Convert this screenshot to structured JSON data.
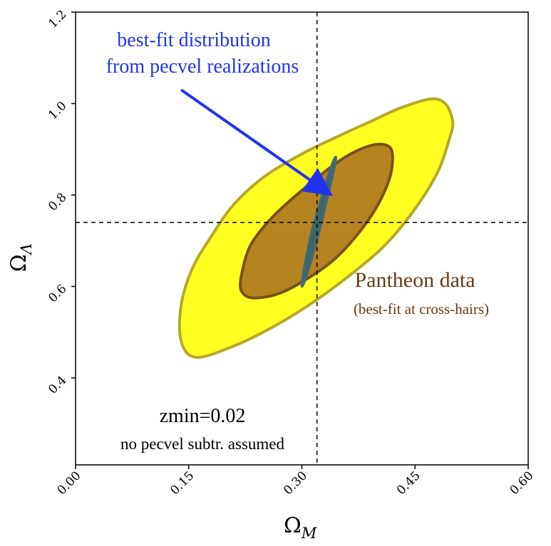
{
  "chart_data": {
    "type": "contour",
    "xlabel": "Ω",
    "xlabel_sub": "M",
    "ylabel": "Ω",
    "ylabel_sub": "Λ",
    "xlim": [
      0.0,
      0.6
    ],
    "ylim": [
      0.21,
      1.2
    ],
    "x_ticks": [
      0.0,
      0.15,
      0.3,
      0.45,
      0.6
    ],
    "x_tick_labels": [
      "0.00",
      "0.15",
      "0.30",
      "0.45",
      "0.60"
    ],
    "y_ticks": [
      0.4,
      0.6,
      0.8,
      1.0,
      1.2
    ],
    "y_tick_labels": [
      "0.4",
      "0.6",
      "0.8",
      "1.0",
      "1.2"
    ],
    "crosshair": {
      "x": 0.32,
      "y": 0.74
    },
    "contours": [
      {
        "level": "outer",
        "fill": "#ffff22",
        "stroke": "#b5a828",
        "points": [
          [
            0.16,
            0.445
          ],
          [
            0.21,
            0.47
          ],
          [
            0.26,
            0.51
          ],
          [
            0.31,
            0.56
          ],
          [
            0.36,
            0.62
          ],
          [
            0.41,
            0.69
          ],
          [
            0.45,
            0.77
          ],
          [
            0.48,
            0.85
          ],
          [
            0.495,
            0.92
          ],
          [
            0.5,
            0.96
          ],
          [
            0.49,
            1.0
          ],
          [
            0.47,
            1.01
          ],
          [
            0.43,
            0.99
          ],
          [
            0.39,
            0.96
          ],
          [
            0.35,
            0.93
          ],
          [
            0.3,
            0.89
          ],
          [
            0.25,
            0.84
          ],
          [
            0.21,
            0.78
          ],
          [
            0.18,
            0.71
          ],
          [
            0.155,
            0.64
          ],
          [
            0.14,
            0.56
          ],
          [
            0.14,
            0.48
          ]
        ]
      },
      {
        "level": "inner",
        "fill": "#b68321",
        "stroke": "#7a5117",
        "points": [
          [
            0.235,
            0.575
          ],
          [
            0.27,
            0.585
          ],
          [
            0.31,
            0.62
          ],
          [
            0.35,
            0.67
          ],
          [
            0.39,
            0.75
          ],
          [
            0.415,
            0.83
          ],
          [
            0.42,
            0.89
          ],
          [
            0.41,
            0.91
          ],
          [
            0.385,
            0.905
          ],
          [
            0.35,
            0.875
          ],
          [
            0.3,
            0.81
          ],
          [
            0.26,
            0.75
          ],
          [
            0.232,
            0.69
          ],
          [
            0.22,
            0.625
          ],
          [
            0.22,
            0.59
          ]
        ]
      },
      {
        "level": "pecvel",
        "fill": "#3f6565",
        "stroke": "#3f6b7a",
        "points": [
          [
            0.3,
            0.61
          ],
          [
            0.304,
            0.612
          ],
          [
            0.32,
            0.7
          ],
          [
            0.335,
            0.8
          ],
          [
            0.345,
            0.875
          ],
          [
            0.341,
            0.872
          ],
          [
            0.325,
            0.79
          ],
          [
            0.31,
            0.7
          ]
        ]
      }
    ],
    "annotations": {
      "pecvel_line1": "best-fit distribution",
      "pecvel_line2": "from pecvel realizations",
      "pantheon_title": "Pantheon data",
      "pantheon_sub": "(best-fit at cross-hairs)",
      "zmin": "zmin=0.02",
      "assumption": "no pecvel subtr. assumed"
    },
    "arrow": {
      "from": [
        0.14,
        1.03
      ],
      "to": [
        0.335,
        0.805
      ],
      "color": "#2233ee"
    },
    "grid": false,
    "legend": "none"
  }
}
